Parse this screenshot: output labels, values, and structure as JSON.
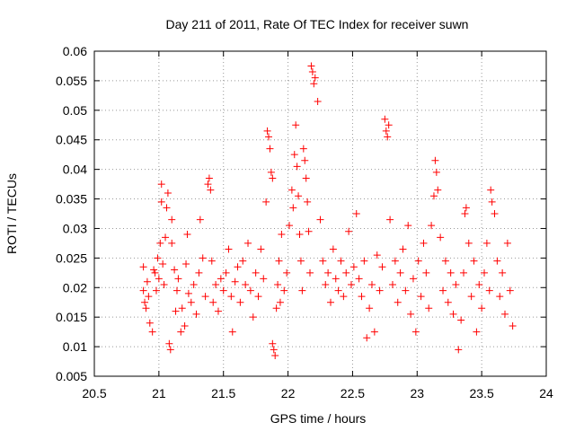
{
  "chart_data": {
    "type": "scatter",
    "title": "Day 211 of 2011, Rate Of TEC Index for receiver suwn",
    "xlabel": "GPS time / hours",
    "ylabel": "ROTI / TECUs",
    "xlim": [
      20.5,
      24
    ],
    "ylim": [
      0.005,
      0.06
    ],
    "xticks": [
      "20.5",
      "21",
      "21.5",
      "22",
      "22.5",
      "23",
      "23.5",
      "24"
    ],
    "yticks": [
      "0.005",
      "0.01",
      "0.015",
      "0.02",
      "0.025",
      "0.03",
      "0.035",
      "0.04",
      "0.045",
      "0.05",
      "0.055",
      "0.06"
    ],
    "grid": true,
    "marker": "+",
    "marker_color": "#ff0000",
    "series": [
      {
        "name": "",
        "points": [
          [
            20.88,
            0.0235
          ],
          [
            20.88,
            0.0195
          ],
          [
            20.89,
            0.0175
          ],
          [
            20.9,
            0.0165
          ],
          [
            20.91,
            0.021
          ],
          [
            20.92,
            0.0185
          ],
          [
            20.93,
            0.014
          ],
          [
            20.95,
            0.0125
          ],
          [
            20.96,
            0.023
          ],
          [
            20.97,
            0.0225
          ],
          [
            20.98,
            0.0195
          ],
          [
            20.99,
            0.025
          ],
          [
            21.0,
            0.0215
          ],
          [
            21.01,
            0.0275
          ],
          [
            21.02,
            0.0345
          ],
          [
            21.02,
            0.0375
          ],
          [
            21.03,
            0.024
          ],
          [
            21.04,
            0.0205
          ],
          [
            21.05,
            0.0285
          ],
          [
            21.06,
            0.0335
          ],
          [
            21.07,
            0.036
          ],
          [
            21.08,
            0.0105
          ],
          [
            21.09,
            0.0095
          ],
          [
            21.1,
            0.0315
          ],
          [
            21.1,
            0.0275
          ],
          [
            21.12,
            0.023
          ],
          [
            21.13,
            0.016
          ],
          [
            21.14,
            0.0195
          ],
          [
            21.15,
            0.0215
          ],
          [
            21.17,
            0.0125
          ],
          [
            21.18,
            0.0165
          ],
          [
            21.2,
            0.0135
          ],
          [
            21.21,
            0.024
          ],
          [
            21.22,
            0.029
          ],
          [
            21.23,
            0.019
          ],
          [
            21.25,
            0.0175
          ],
          [
            21.27,
            0.0205
          ],
          [
            21.29,
            0.0155
          ],
          [
            21.31,
            0.0225
          ],
          [
            21.32,
            0.0315
          ],
          [
            21.34,
            0.025
          ],
          [
            21.36,
            0.0185
          ],
          [
            21.38,
            0.0375
          ],
          [
            21.39,
            0.0385
          ],
          [
            21.4,
            0.0365
          ],
          [
            21.41,
            0.0245
          ],
          [
            21.42,
            0.0175
          ],
          [
            21.44,
            0.0205
          ],
          [
            21.46,
            0.016
          ],
          [
            21.48,
            0.0215
          ],
          [
            21.5,
            0.0195
          ],
          [
            21.52,
            0.0225
          ],
          [
            21.54,
            0.0265
          ],
          [
            21.56,
            0.0185
          ],
          [
            21.57,
            0.0125
          ],
          [
            21.59,
            0.021
          ],
          [
            21.61,
            0.0235
          ],
          [
            21.63,
            0.0175
          ],
          [
            21.65,
            0.0245
          ],
          [
            21.67,
            0.0205
          ],
          [
            21.69,
            0.0275
          ],
          [
            21.71,
            0.0195
          ],
          [
            21.73,
            0.015
          ],
          [
            21.75,
            0.0225
          ],
          [
            21.77,
            0.0185
          ],
          [
            21.79,
            0.0265
          ],
          [
            21.81,
            0.0215
          ],
          [
            21.83,
            0.0345
          ],
          [
            21.84,
            0.0465
          ],
          [
            21.85,
            0.0455
          ],
          [
            21.86,
            0.0435
          ],
          [
            21.87,
            0.0395
          ],
          [
            21.88,
            0.0385
          ],
          [
            21.88,
            0.0105
          ],
          [
            21.89,
            0.0095
          ],
          [
            21.9,
            0.0085
          ],
          [
            21.91,
            0.0165
          ],
          [
            21.92,
            0.0205
          ],
          [
            21.93,
            0.0245
          ],
          [
            21.94,
            0.0175
          ],
          [
            21.95,
            0.029
          ],
          [
            21.97,
            0.0195
          ],
          [
            21.99,
            0.0225
          ],
          [
            22.01,
            0.0305
          ],
          [
            22.03,
            0.0365
          ],
          [
            22.04,
            0.0335
          ],
          [
            22.05,
            0.0425
          ],
          [
            22.06,
            0.0475
          ],
          [
            22.07,
            0.0405
          ],
          [
            22.08,
            0.0355
          ],
          [
            22.09,
            0.029
          ],
          [
            22.1,
            0.0245
          ],
          [
            22.11,
            0.0195
          ],
          [
            22.12,
            0.0435
          ],
          [
            22.13,
            0.0415
          ],
          [
            22.14,
            0.0385
          ],
          [
            22.15,
            0.0345
          ],
          [
            22.16,
            0.0295
          ],
          [
            22.17,
            0.0225
          ],
          [
            22.18,
            0.0575
          ],
          [
            22.19,
            0.0565
          ],
          [
            22.2,
            0.0545
          ],
          [
            22.21,
            0.0555
          ],
          [
            22.23,
            0.0515
          ],
          [
            22.25,
            0.0315
          ],
          [
            22.27,
            0.0245
          ],
          [
            22.29,
            0.0205
          ],
          [
            22.31,
            0.0225
          ],
          [
            22.33,
            0.0175
          ],
          [
            22.35,
            0.0265
          ],
          [
            22.37,
            0.0215
          ],
          [
            22.39,
            0.0195
          ],
          [
            22.41,
            0.0245
          ],
          [
            22.43,
            0.0185
          ],
          [
            22.45,
            0.0225
          ],
          [
            22.47,
            0.0295
          ],
          [
            22.49,
            0.0205
          ],
          [
            22.51,
            0.0235
          ],
          [
            22.53,
            0.0325
          ],
          [
            22.55,
            0.0215
          ],
          [
            22.57,
            0.0185
          ],
          [
            22.59,
            0.0245
          ],
          [
            22.61,
            0.0115
          ],
          [
            22.63,
            0.0165
          ],
          [
            22.65,
            0.0205
          ],
          [
            22.67,
            0.0125
          ],
          [
            22.69,
            0.0255
          ],
          [
            22.71,
            0.0195
          ],
          [
            22.73,
            0.0235
          ],
          [
            22.75,
            0.0485
          ],
          [
            22.76,
            0.0465
          ],
          [
            22.77,
            0.0455
          ],
          [
            22.78,
            0.0475
          ],
          [
            22.79,
            0.0315
          ],
          [
            22.81,
            0.0205
          ],
          [
            22.83,
            0.0245
          ],
          [
            22.85,
            0.0175
          ],
          [
            22.87,
            0.0225
          ],
          [
            22.89,
            0.0265
          ],
          [
            22.91,
            0.0195
          ],
          [
            22.93,
            0.0305
          ],
          [
            22.95,
            0.0155
          ],
          [
            22.97,
            0.0215
          ],
          [
            22.99,
            0.0125
          ],
          [
            23.01,
            0.0245
          ],
          [
            23.03,
            0.0185
          ],
          [
            23.05,
            0.0275
          ],
          [
            23.07,
            0.0225
          ],
          [
            23.09,
            0.0165
          ],
          [
            23.11,
            0.0305
          ],
          [
            23.13,
            0.0355
          ],
          [
            23.14,
            0.0415
          ],
          [
            23.15,
            0.0395
          ],
          [
            23.16,
            0.0365
          ],
          [
            23.18,
            0.0285
          ],
          [
            23.2,
            0.0195
          ],
          [
            23.22,
            0.0245
          ],
          [
            23.24,
            0.0175
          ],
          [
            23.26,
            0.0225
          ],
          [
            23.28,
            0.0155
          ],
          [
            23.3,
            0.0205
          ],
          [
            23.32,
            0.0095
          ],
          [
            23.34,
            0.0145
          ],
          [
            23.36,
            0.0225
          ],
          [
            23.37,
            0.0325
          ],
          [
            23.38,
            0.0335
          ],
          [
            23.4,
            0.0275
          ],
          [
            23.42,
            0.0185
          ],
          [
            23.44,
            0.0245
          ],
          [
            23.46,
            0.0125
          ],
          [
            23.48,
            0.0205
          ],
          [
            23.5,
            0.0165
          ],
          [
            23.52,
            0.0225
          ],
          [
            23.54,
            0.0275
          ],
          [
            23.56,
            0.0195
          ],
          [
            23.57,
            0.0365
          ],
          [
            23.58,
            0.0345
          ],
          [
            23.6,
            0.0325
          ],
          [
            23.62,
            0.0245
          ],
          [
            23.64,
            0.0185
          ],
          [
            23.66,
            0.0225
          ],
          [
            23.68,
            0.0155
          ],
          [
            23.7,
            0.0275
          ],
          [
            23.72,
            0.0195
          ],
          [
            23.74,
            0.0135
          ]
        ]
      }
    ]
  }
}
